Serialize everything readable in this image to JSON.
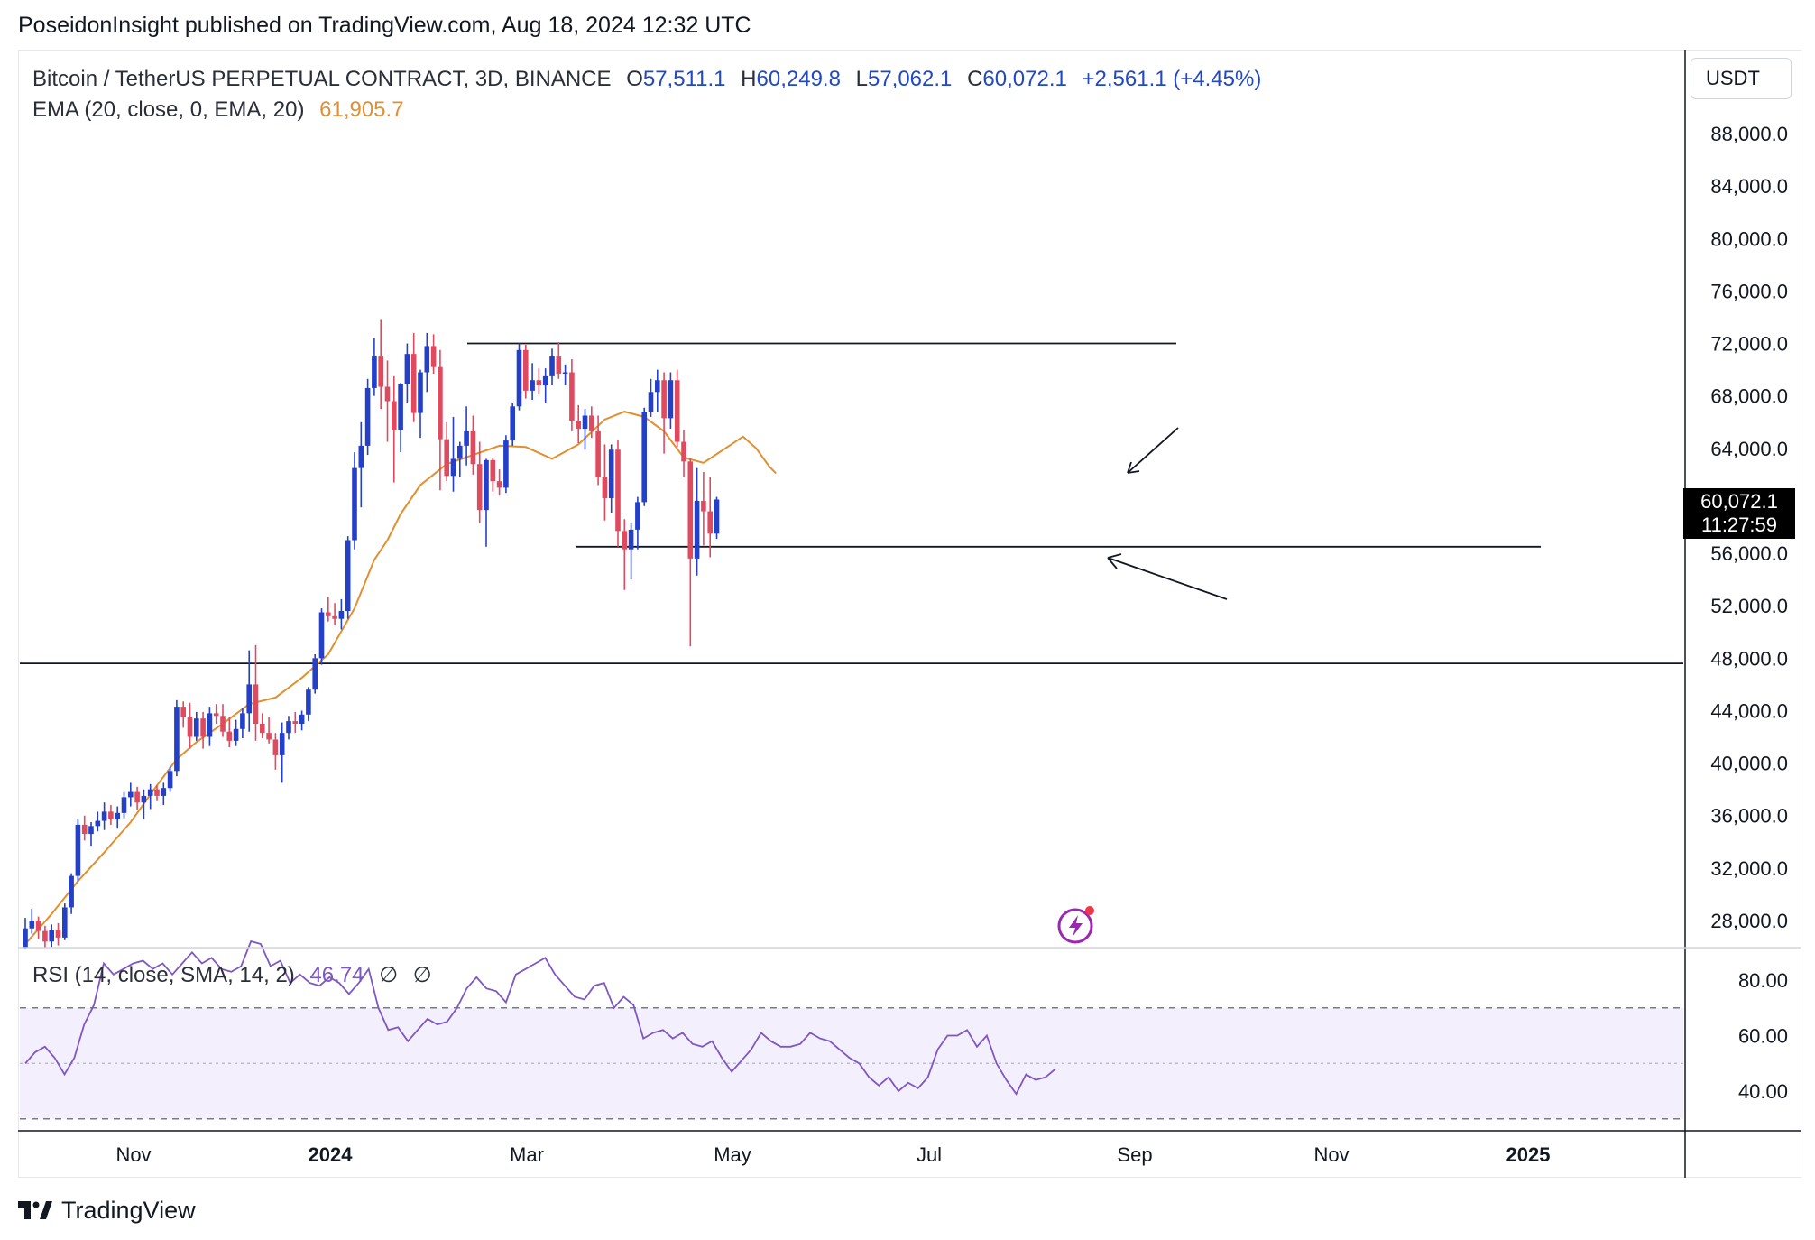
{
  "header": {
    "publisher_line": "PoseidonInsight published on TradingView.com, Aug 18, 2024 12:32 UTC"
  },
  "legend": {
    "symbol": "Bitcoin / TetherUS PERPETUAL CONTRACT, 3D, BINANCE",
    "o_label": "O",
    "o_value": "57,511.1",
    "h_label": "H",
    "h_value": "60,249.8",
    "l_label": "L",
    "l_value": "57,062.1",
    "c_label": "C",
    "c_value": "60,072.1",
    "change": "+2,561.1 (+4.45%)",
    "ema_label": "EMA (20, close, 0, EMA, 20)",
    "ema_value": "61,905.7"
  },
  "rsi_legend": {
    "label": "RSI (14, close, SMA, 14, 2)",
    "value": "46.74",
    "symbol_a": "∅",
    "symbol_b": "∅"
  },
  "price_axis": {
    "unit": "USDT",
    "current_price": "60,072.1",
    "countdown": "11:27:59"
  },
  "footer": {
    "brand": "TradingView"
  },
  "icons": {
    "logo": "tradingview-logo-icon",
    "alert": "lightning-alert-icon"
  },
  "colors": {
    "up": "#2440c8",
    "down": "#e04a5f",
    "ema": "#e0902f",
    "rsi": "#7e57c2",
    "rsi_band": "#f3effc"
  },
  "chart_data": [
    {
      "type": "candlestick",
      "title": "Bitcoin / TetherUS PERPETUAL CONTRACT, 3D, BINANCE",
      "y_ticks": [
        "88,000.0",
        "84,000.0",
        "80,000.0",
        "76,000.0",
        "72,000.0",
        "68,000.0",
        "64,000.0",
        "60,072.1",
        "56,000.0",
        "52,000.0",
        "48,000.0",
        "44,000.0",
        "40,000.0",
        "36,000.0",
        "32,000.0",
        "28,000.0"
      ],
      "y_tick_values": [
        88000,
        84000,
        80000,
        76000,
        72000,
        68000,
        64000,
        56000,
        52000,
        48000,
        44000,
        40000,
        36000,
        32000,
        28000
      ],
      "x_ticks": [
        "Nov",
        "2024",
        "Mar",
        "May",
        "Jul",
        "Sep",
        "Nov",
        "2025"
      ],
      "ylim": [
        26000,
        90000
      ],
      "series": [
        {
          "name": "EMA (20, close, 0, EMA, 20)",
          "kind": "line",
          "points": [
            [
              0,
              26200
            ],
            [
              4,
              28500
            ],
            [
              8,
              31000
            ],
            [
              12,
              33200
            ],
            [
              16,
              35500
            ],
            [
              20,
              38300
            ],
            [
              23,
              40300
            ],
            [
              26,
              41600
            ],
            [
              30,
              43000
            ],
            [
              34,
              44500
            ],
            [
              38,
              45000
            ],
            [
              42,
              46500
            ],
            [
              46,
              48300
            ],
            [
              50,
              51800
            ],
            [
              53,
              55500
            ],
            [
              55,
              57000
            ],
            [
              57,
              59000
            ],
            [
              60,
              61200
            ],
            [
              64,
              62800
            ],
            [
              68,
              63500
            ],
            [
              72,
              64200
            ],
            [
              76,
              64100
            ],
            [
              80,
              63200
            ],
            [
              84,
              64300
            ],
            [
              88,
              66200
            ],
            [
              91,
              66800
            ],
            [
              94,
              66400
            ],
            [
              97,
              65300
            ],
            [
              100,
              63300
            ],
            [
              103,
              62900
            ],
            [
              106,
              63900
            ],
            [
              109,
              64900
            ],
            [
              111,
              64000
            ],
            [
              113,
              62600
            ],
            [
              114,
              62100
            ]
          ]
        }
      ],
      "candles": [
        [
          25900,
          28200,
          25800,
          27400
        ],
        [
          27400,
          28900,
          27000,
          28000
        ],
        [
          28000,
          28300,
          26600,
          27200
        ],
        [
          27200,
          27600,
          25900,
          26400
        ],
        [
          26400,
          27700,
          26000,
          27300
        ],
        [
          27300,
          27800,
          26100,
          26700
        ],
        [
          26700,
          29300,
          26500,
          29000
        ],
        [
          29000,
          31600,
          28500,
          31400
        ],
        [
          31400,
          35700,
          31000,
          35300
        ],
        [
          35300,
          36000,
          34100,
          34600
        ],
        [
          34600,
          35500,
          33700,
          35200
        ],
        [
          35200,
          36300,
          34800,
          35600
        ],
        [
          35600,
          37000,
          34900,
          36300
        ],
        [
          36300,
          36800,
          35300,
          35700
        ],
        [
          35700,
          36700,
          35000,
          36200
        ],
        [
          36200,
          37800,
          35800,
          37400
        ],
        [
          37400,
          38500,
          36700,
          37800
        ],
        [
          37800,
          38200,
          36400,
          37000
        ],
        [
          37000,
          38000,
          35700,
          37500
        ],
        [
          37500,
          38400,
          36500,
          38000
        ],
        [
          38000,
          38300,
          37100,
          37500
        ],
        [
          37500,
          38500,
          36800,
          38100
        ],
        [
          38100,
          39700,
          37800,
          39400
        ],
        [
          39400,
          44800,
          39000,
          44300
        ],
        [
          44300,
          44700,
          42700,
          43500
        ],
        [
          43500,
          44600,
          41100,
          42000
        ],
        [
          42000,
          43900,
          41700,
          43400
        ],
        [
          43400,
          43900,
          41100,
          42000
        ],
        [
          42000,
          44300,
          41300,
          43800
        ],
        [
          43800,
          44500,
          43000,
          43600
        ],
        [
          43600,
          44500,
          42000,
          42400
        ],
        [
          42400,
          43500,
          41200,
          41700
        ],
        [
          41700,
          43300,
          41300,
          42600
        ],
        [
          42600,
          44200,
          41900,
          43800
        ],
        [
          43800,
          48600,
          42400,
          46000
        ],
        [
          46000,
          49000,
          41700,
          43000
        ],
        [
          43000,
          43800,
          41900,
          42300
        ],
        [
          42300,
          43500,
          41500,
          41800
        ],
        [
          41800,
          42300,
          39500,
          40600
        ],
        [
          40600,
          43100,
          38500,
          42300
        ],
        [
          42300,
          43600,
          41800,
          43200
        ],
        [
          43200,
          43900,
          42300,
          43000
        ],
        [
          43000,
          44000,
          42500,
          43700
        ],
        [
          43700,
          45800,
          43200,
          45600
        ],
        [
          45600,
          48300,
          45300,
          48000
        ],
        [
          48000,
          51800,
          47500,
          51500
        ],
        [
          51500,
          52700,
          50800,
          51200
        ],
        [
          51200,
          52200,
          50500,
          51000
        ],
        [
          51000,
          52500,
          50200,
          51600
        ],
        [
          51600,
          57300,
          51000,
          57000
        ],
        [
          57000,
          63700,
          56300,
          62500
        ],
        [
          62500,
          66000,
          59500,
          64200
        ],
        [
          64200,
          69300,
          63500,
          68600
        ],
        [
          68600,
          72400,
          68000,
          71000
        ],
        [
          71000,
          73800,
          67000,
          68700
        ],
        [
          68700,
          70700,
          64500,
          67600
        ],
        [
          67600,
          69500,
          61400,
          65400
        ],
        [
          65400,
          69000,
          63700,
          68900
        ],
        [
          68900,
          72000,
          67500,
          71200
        ],
        [
          71200,
          72800,
          66000,
          66700
        ],
        [
          66700,
          70000,
          64800,
          69800
        ],
        [
          69800,
          72800,
          68300,
          71800
        ],
        [
          71800,
          72700,
          69700,
          70200
        ],
        [
          70200,
          71500,
          60800,
          64700
        ],
        [
          64700,
          66000,
          61500,
          61900
        ],
        [
          61900,
          66400,
          60700,
          63200
        ],
        [
          63200,
          64500,
          61800,
          64200
        ],
        [
          64200,
          67200,
          62700,
          65300
        ],
        [
          65300,
          66500,
          62000,
          62800
        ],
        [
          62800,
          64500,
          58300,
          59300
        ],
        [
          59300,
          63200,
          56500,
          63100
        ],
        [
          63100,
          63300,
          60700,
          61500
        ],
        [
          61500,
          62400,
          60400,
          61000
        ],
        [
          61000,
          65000,
          60600,
          64600
        ],
        [
          64600,
          67500,
          64200,
          67200
        ],
        [
          67200,
          72000,
          66900,
          71500
        ],
        [
          71500,
          71900,
          67800,
          68400
        ],
        [
          68400,
          70500,
          67700,
          69200
        ],
        [
          69200,
          70100,
          68100,
          68800
        ],
        [
          68800,
          70100,
          67500,
          69500
        ],
        [
          69500,
          71600,
          68800,
          71000
        ],
        [
          71000,
          72100,
          69300,
          69700
        ],
        [
          69700,
          70400,
          68800,
          69800
        ],
        [
          69800,
          70800,
          65300,
          66100
        ],
        [
          66100,
          67300,
          64400,
          65500
        ],
        [
          65500,
          67000,
          63900,
          66500
        ],
        [
          66500,
          67200,
          64800,
          65300
        ],
        [
          65300,
          66500,
          61200,
          61800
        ],
        [
          61800,
          64300,
          58500,
          60200
        ],
        [
          60200,
          64300,
          59100,
          63900
        ],
        [
          63900,
          64600,
          56500,
          57700
        ],
        [
          57700,
          58600,
          53200,
          56300
        ],
        [
          56300,
          58300,
          54000,
          57800
        ],
        [
          57800,
          60300,
          56300,
          59900
        ],
        [
          59900,
          67100,
          59600,
          66800
        ],
        [
          66800,
          69300,
          66400,
          68300
        ],
        [
          68300,
          70000,
          66800,
          69200
        ],
        [
          69200,
          69800,
          63600,
          66300
        ],
        [
          66300,
          69800,
          65500,
          69200
        ],
        [
          69200,
          70000,
          64100,
          64500
        ],
        [
          64500,
          65400,
          61800,
          63000
        ],
        [
          63000,
          63300,
          48900,
          55600
        ],
        [
          55600,
          62500,
          54300,
          60000
        ],
        [
          60000,
          62200,
          56600,
          59200
        ],
        [
          59200,
          61800,
          55700,
          57500
        ],
        [
          57500,
          60300,
          57100,
          60100
        ]
      ],
      "levels": [
        {
          "label": "range_top",
          "value": 72000
        },
        {
          "label": "range_bottom",
          "value": 56500
        },
        {
          "label": "support",
          "value": 47600
        }
      ]
    },
    {
      "type": "line",
      "title": "RSI (14, close, SMA, 14, 2)",
      "y_ticks": [
        "80.00",
        "60.00",
        "40.00"
      ],
      "y_tick_values": [
        80,
        60,
        40
      ],
      "ylim": [
        30,
        88
      ],
      "bands": [
        70,
        50,
        30
      ],
      "series": [
        {
          "name": "RSI (14, close, SMA, 14, 2)",
          "values": [
            50,
            54,
            56,
            52,
            46,
            52,
            64,
            71,
            86,
            82,
            84,
            86,
            87,
            84,
            86,
            82,
            86,
            90,
            86,
            88,
            84,
            83,
            85,
            94,
            93,
            85,
            87,
            79,
            82,
            79,
            78,
            81,
            79,
            75,
            79,
            84,
            70,
            62,
            63,
            58,
            62,
            66,
            64,
            65,
            70,
            77,
            81,
            77,
            76,
            72,
            82,
            84,
            86,
            88,
            82,
            78,
            74,
            73,
            78,
            79,
            70,
            74,
            71,
            59,
            61,
            62,
            59,
            61,
            57,
            56,
            58,
            52,
            47,
            51,
            55,
            61,
            58,
            56,
            56,
            57,
            61,
            59,
            58,
            55,
            52,
            50,
            45,
            42,
            45,
            40,
            43,
            41,
            45,
            55,
            60,
            60,
            62,
            56,
            60,
            50,
            44,
            39,
            46,
            44,
            45,
            48
          ]
        }
      ]
    }
  ]
}
